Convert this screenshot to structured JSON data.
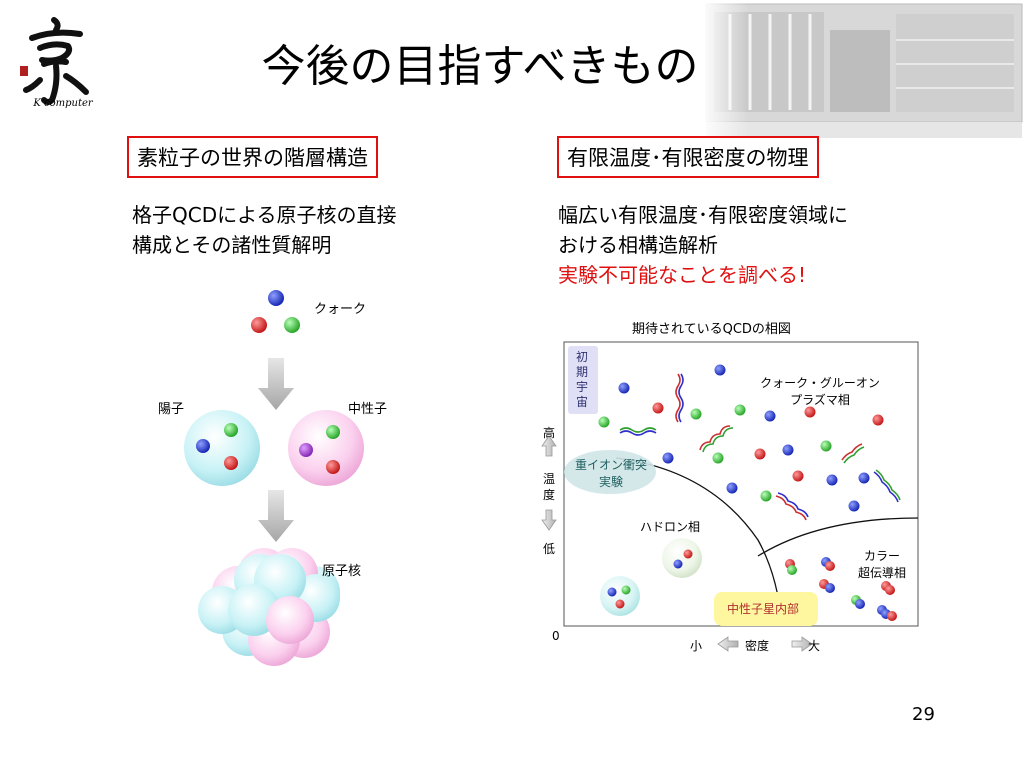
{
  "header": {
    "title": "今後の目指すべきもの",
    "logo_caption": "K computer"
  },
  "left_panel": {
    "box_label": "素粒子の世界の階層構造",
    "desc_line1": "格子QCDによる原子核の直接",
    "desc_line2": "構成とその諸性質解明",
    "diagram": {
      "quark_label": "クォーク",
      "proton_label": "陽子",
      "neutron_label": "中性子",
      "nucleus_label": "原子核"
    }
  },
  "right_panel": {
    "box_label": "有限温度･有限密度の物理",
    "desc_line1": "幅広い有限温度･有限密度領域に",
    "desc_line2": "おける相構造解析",
    "highlight": "実験不可能なことを調べる!",
    "phase_diagram": {
      "caption": "期待されているQCDの相図",
      "early_universe": "初期宇宙",
      "qgp_line1": "クォーク・グルーオン",
      "qgp_line2": "プラズマ相",
      "heavy_ion_line1": "重イオン衝突",
      "heavy_ion_line2": "実験",
      "hadron_phase": "ハドロン相",
      "color_sc_line1": "カラー",
      "color_sc_line2": "超伝導相",
      "neutron_star": "中性子星内部",
      "y_high": "高",
      "y_temp_1": "温",
      "y_temp_2": "度",
      "y_low": "低",
      "origin": "0",
      "x_small": "小",
      "x_density": "密度",
      "x_large": "大"
    }
  },
  "footer": {
    "page_number": "29"
  },
  "colors": {
    "accent_red": "#e01010",
    "quark_red": "#d42020",
    "quark_green": "#30c030",
    "quark_blue": "#2030c0"
  }
}
